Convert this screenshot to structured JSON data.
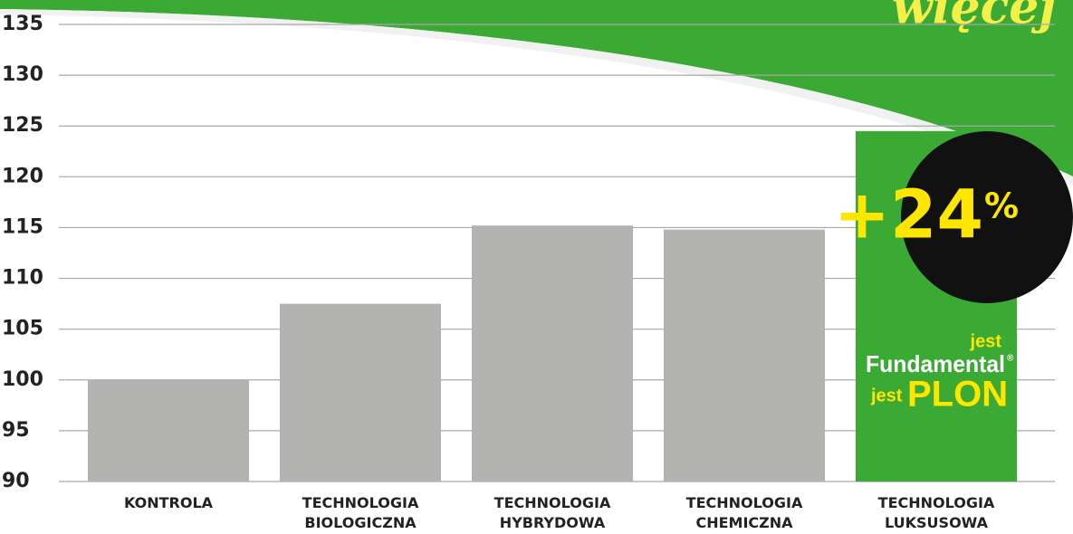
{
  "chart_data": {
    "type": "bar",
    "categories": [
      "KONTROLA",
      "TECHNOLOGIA\nBIOLOGICZNA",
      "TECHNOLOGIA\nHYBRYDOWA",
      "TECHNOLOGIA\nCHEMICZNA",
      "TECHNOLOGIA\nLUKSUSOWA"
    ],
    "values": [
      100,
      107.5,
      115.2,
      114.8,
      124.5
    ],
    "colors": [
      "#b3b3b2",
      "#b3b3b2",
      "#b3b3b2",
      "#b3b3b2",
      "#3aaa35"
    ],
    "ylim": [
      90,
      135
    ],
    "yticks": [
      90,
      95,
      100,
      105,
      110,
      115,
      120,
      125,
      130,
      135
    ],
    "grid": true,
    "badge": {
      "main": "+24",
      "unit": "%"
    },
    "logo": {
      "line1": "jest",
      "line2": "Fundamental",
      "mark": "®",
      "line3a": "jest",
      "line3b": "PLON"
    },
    "corner_text": "więcej"
  }
}
